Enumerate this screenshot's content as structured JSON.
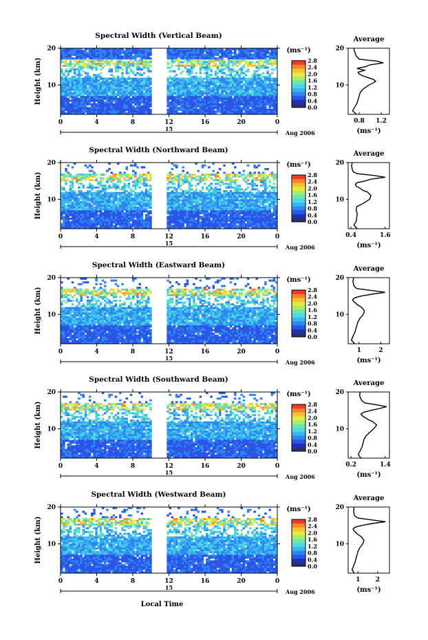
{
  "figure": {
    "x_common_label": "Local Time",
    "date_label": "Aug 2006",
    "day_label": "15",
    "colorbar_unit": "(ms⁻¹)",
    "average_unit": "(ms⁻¹)",
    "panel_ylabel": "Height (km)",
    "average_title": "Average"
  },
  "colors": {
    "scale": [
      "#2c2f6b",
      "#1f2fb8",
      "#2a55e6",
      "#2f86f2",
      "#39b6f2",
      "#4fd8e0",
      "#6fe6b0",
      "#a8ee6c",
      "#e6ea40",
      "#f6c033",
      "#f6862b",
      "#ef3a26"
    ],
    "axis": "#000000",
    "background": "#ffffff"
  },
  "chart_data": [
    {
      "type": "heatmap",
      "title": "Spectral Width (Vertical Beam)",
      "xlabel": "",
      "ylabel": "Height (km)",
      "x_ticks": [
        "0",
        "4",
        "8",
        "12",
        "16",
        "20",
        "0"
      ],
      "y_ticks": [
        "10",
        "20"
      ],
      "xlim": [
        0,
        24
      ],
      "ylim": [
        2,
        20
      ],
      "data_gap_hours": [
        10.2,
        11.8
      ],
      "colorbar": {
        "unit": "(ms⁻¹)",
        "ticks": [
          "0.0",
          "0.4",
          "0.8",
          "1.2",
          "1.6",
          "2.0",
          "2.4",
          "2.8"
        ],
        "range": [
          0,
          2.8
        ]
      },
      "average_profile": {
        "title": "Average",
        "xlabel": "(ms⁻¹)",
        "x_ticks": [
          "0.8",
          "1.2"
        ],
        "xlim": [
          0.6,
          1.35
        ],
        "y_ticks": [
          "10",
          "20"
        ],
        "ylim": [
          2,
          20
        ],
        "height_km": [
          2,
          3,
          4,
          5,
          6,
          7,
          8,
          9,
          10,
          10.5,
          11,
          11.5,
          12,
          12.5,
          13,
          13.5,
          14,
          14.5,
          15,
          15.5,
          16,
          16.5,
          17,
          18,
          19,
          20
        ],
        "width_ms": [
          0.75,
          0.68,
          0.72,
          0.76,
          0.78,
          0.8,
          0.82,
          0.88,
          0.98,
          1.05,
          1.1,
          1.06,
          0.96,
          0.86,
          0.8,
          0.78,
          0.9,
          0.76,
          0.92,
          1.0,
          1.24,
          1.12,
          0.8,
          0.74,
          0.72,
          0.7
        ]
      }
    },
    {
      "type": "heatmap",
      "title": "Spectral Width (Northward Beam)",
      "xlabel": "",
      "ylabel": "Height (km)",
      "x_ticks": [
        "0",
        "4",
        "8",
        "12",
        "16",
        "20",
        "0"
      ],
      "y_ticks": [
        "10",
        "20"
      ],
      "xlim": [
        0,
        24
      ],
      "ylim": [
        2,
        20
      ],
      "data_gap_hours": [
        10.2,
        11.8
      ],
      "colorbar": {
        "unit": "(ms⁻¹)",
        "ticks": [
          "0.0",
          "0.4",
          "0.8",
          "1.2",
          "1.6",
          "2.0",
          "2.4",
          "2.8"
        ],
        "range": [
          0,
          2.8
        ]
      },
      "average_profile": {
        "title": "Average",
        "xlabel": "(ms⁻¹)",
        "x_ticks": [
          "0.4",
          "1.6"
        ],
        "xlim": [
          0.3,
          1.75
        ],
        "y_ticks": [
          "10",
          "20"
        ],
        "ylim": [
          2,
          20
        ],
        "height_km": [
          2,
          3,
          4,
          5,
          6,
          7,
          8,
          9,
          10,
          11,
          12,
          12.5,
          13,
          13.5,
          14,
          14.5,
          15,
          15.5,
          16,
          16.5,
          17,
          17.5,
          18,
          19,
          20
        ],
        "width_ms": [
          0.62,
          0.5,
          0.58,
          0.6,
          0.62,
          0.58,
          0.6,
          0.85,
          1.05,
          1.1,
          0.98,
          0.8,
          0.72,
          0.6,
          0.55,
          0.6,
          0.9,
          1.1,
          1.6,
          1.2,
          0.6,
          0.48,
          0.45,
          0.42,
          0.44
        ]
      }
    },
    {
      "type": "heatmap",
      "title": "Spectral Width (Eastward Beam)",
      "xlabel": "",
      "ylabel": "Height (km)",
      "x_ticks": [
        "0",
        "4",
        "8",
        "12",
        "16",
        "20",
        "0"
      ],
      "y_ticks": [
        "10",
        "20"
      ],
      "xlim": [
        0,
        24
      ],
      "ylim": [
        2,
        20
      ],
      "data_gap_hours": [
        10.2,
        11.8
      ],
      "colorbar": {
        "unit": "(ms⁻¹)",
        "ticks": [
          "0.0",
          "0.4",
          "0.8",
          "1.2",
          "1.6",
          "2.0",
          "2.4",
          "2.8"
        ],
        "range": [
          0,
          2.8
        ]
      },
      "average_profile": {
        "title": "Average",
        "xlabel": "(ms⁻¹)",
        "x_ticks": [
          "1",
          "2"
        ],
        "xlim": [
          0.5,
          2.4
        ],
        "y_ticks": [
          "10",
          "20"
        ],
        "ylim": [
          2,
          20
        ],
        "height_km": [
          2,
          3,
          4,
          5,
          6,
          7,
          8,
          9,
          10,
          11,
          12,
          12.5,
          13,
          13.5,
          14,
          14.5,
          15,
          15.5,
          16,
          16.5,
          17,
          17.5,
          18,
          19,
          20
        ],
        "width_ms": [
          0.8,
          0.65,
          0.72,
          0.8,
          0.85,
          0.9,
          0.95,
          1.05,
          1.2,
          1.25,
          1.1,
          0.95,
          0.85,
          0.75,
          0.7,
          0.8,
          1.1,
          1.6,
          2.2,
          1.6,
          0.9,
          0.8,
          0.75,
          0.72,
          0.75
        ]
      }
    },
    {
      "type": "heatmap",
      "title": "Spectral Width (Southward Beam)",
      "xlabel": "",
      "ylabel": "Height (km)",
      "x_ticks": [
        "0",
        "4",
        "8",
        "12",
        "16",
        "20",
        "0"
      ],
      "y_ticks": [
        "10",
        "20"
      ],
      "xlim": [
        0,
        24
      ],
      "ylim": [
        2,
        20
      ],
      "data_gap_hours": [
        10.2,
        11.8
      ],
      "colorbar": {
        "unit": "(ms⁻¹)",
        "ticks": [
          "0.0",
          "0.4",
          "0.8",
          "1.2",
          "1.6",
          "2.0",
          "2.4",
          "2.8"
        ],
        "range": [
          0,
          2.8
        ]
      },
      "average_profile": {
        "title": "Average",
        "xlabel": "(ms⁻¹)",
        "x_ticks": [
          "0.2",
          "1.4"
        ],
        "xlim": [
          0.1,
          1.55
        ],
        "y_ticks": [
          "10",
          "20"
        ],
        "ylim": [
          2,
          20
        ],
        "height_km": [
          2,
          3,
          4,
          5,
          6,
          7,
          8,
          9,
          10,
          11,
          12,
          12.5,
          13,
          13.5,
          14,
          14.5,
          15,
          15.5,
          16,
          16.5,
          17,
          17.5,
          18,
          19,
          20
        ],
        "width_ms": [
          0.55,
          0.45,
          0.52,
          0.58,
          0.62,
          0.65,
          0.72,
          0.85,
          1.0,
          1.1,
          0.95,
          0.8,
          0.7,
          0.6,
          0.55,
          0.65,
          0.9,
          1.2,
          1.45,
          1.1,
          0.7,
          0.6,
          0.55,
          0.5,
          0.52
        ]
      }
    },
    {
      "type": "heatmap",
      "title": "Spectral Width (Westward Beam)",
      "xlabel": "Local Time",
      "ylabel": "Height (km)",
      "x_ticks": [
        "0",
        "4",
        "8",
        "12",
        "16",
        "20",
        "0"
      ],
      "y_ticks": [
        "10",
        "20"
      ],
      "xlim": [
        0,
        24
      ],
      "ylim": [
        2,
        20
      ],
      "data_gap_hours": [
        10.2,
        11.8
      ],
      "colorbar": {
        "unit": "(ms⁻¹)",
        "ticks": [
          "0.0",
          "0.4",
          "0.8",
          "1.2",
          "1.6",
          "2.0",
          "2.4",
          "2.8"
        ],
        "range": [
          0,
          2.8
        ]
      },
      "average_profile": {
        "title": "Average",
        "xlabel": "(ms⁻¹)",
        "x_ticks": [
          "1",
          "2"
        ],
        "xlim": [
          0.5,
          2.6
        ],
        "y_ticks": [
          "10",
          "20"
        ],
        "ylim": [
          2,
          20
        ],
        "height_km": [
          2,
          3,
          4,
          5,
          6,
          7,
          8,
          9,
          10,
          11,
          12,
          12.5,
          13,
          13.5,
          14,
          14.5,
          15,
          15.5,
          16,
          16.5,
          17,
          17.5,
          18,
          19,
          20
        ],
        "width_ms": [
          0.8,
          0.7,
          0.78,
          0.85,
          0.9,
          0.95,
          1.0,
          1.1,
          1.25,
          1.3,
          1.15,
          1.0,
          0.9,
          0.8,
          0.75,
          0.85,
          1.2,
          1.7,
          2.4,
          1.7,
          1.0,
          0.85,
          0.8,
          0.78,
          0.8
        ]
      }
    }
  ]
}
